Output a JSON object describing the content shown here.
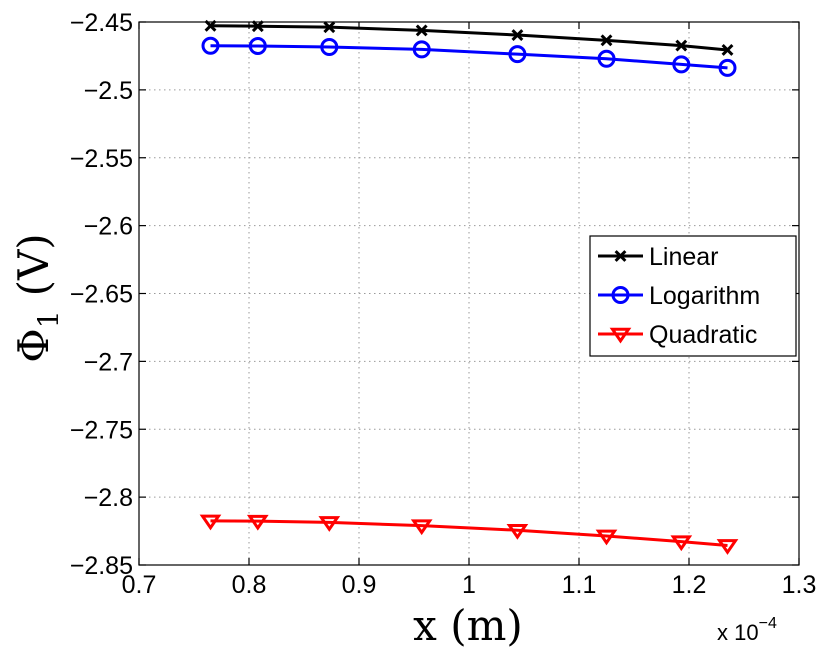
{
  "chart_data": {
    "type": "line",
    "title": "",
    "xlabel": "x (m)",
    "ylabel_symbol": "Φ",
    "ylabel_subscript": "1",
    "ylabel_unit": "(V)",
    "x_multiplier": "x 10",
    "x_multiplier_exponent": "−4",
    "xlim": [
      0.7,
      1.3
    ],
    "ylim": [
      -2.85,
      -2.45
    ],
    "xticks": [
      0.7,
      0.8,
      0.9,
      1.0,
      1.1,
      1.2,
      1.3
    ],
    "xtick_labels": [
      "0.7",
      "0.8",
      "0.9",
      "1",
      "1.1",
      "1.2",
      "1.3"
    ],
    "yticks": [
      -2.45,
      -2.5,
      -2.55,
      -2.6,
      -2.65,
      -2.7,
      -2.75,
      -2.8,
      -2.85
    ],
    "ytick_labels": [
      "−2.45",
      "−2.5",
      "−2.55",
      "−2.6",
      "−2.65",
      "−2.7",
      "−2.75",
      "−2.8",
      "−2.85"
    ],
    "grid": true,
    "legend_position": "right",
    "x": [
      0.765,
      0.808,
      0.873,
      0.957,
      1.044,
      1.125,
      1.193,
      1.235
    ],
    "series": [
      {
        "name": "Linear",
        "color": "#000000",
        "marker": "x",
        "values": [
          -2.4528,
          -2.4531,
          -2.4538,
          -2.4562,
          -2.4596,
          -2.4635,
          -2.4674,
          -2.4706
        ]
      },
      {
        "name": "Logarithm",
        "color": "#0000ff",
        "marker": "o",
        "values": [
          -2.4675,
          -2.4677,
          -2.4684,
          -2.4702,
          -2.4737,
          -2.4771,
          -2.4812,
          -2.4838
        ]
      },
      {
        "name": "Quadratic",
        "color": "#ff0000",
        "marker": "triangle-down",
        "values": [
          -2.8175,
          -2.8177,
          -2.8186,
          -2.821,
          -2.8244,
          -2.8286,
          -2.8328,
          -2.8356
        ]
      }
    ]
  }
}
